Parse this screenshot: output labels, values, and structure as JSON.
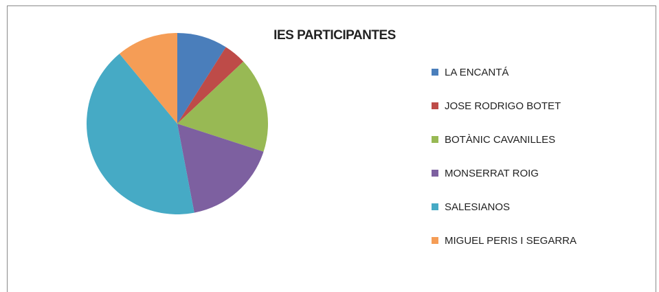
{
  "chart_data": {
    "type": "pie",
    "title": "IES PARTICIPANTES",
    "categories": [
      "LA ENCANTÁ",
      "JOSE RODRIGO BOTET",
      "BOTÀNIC CAVANILLES",
      "MONSERRAT ROIG",
      "SALESIANOS",
      "MIGUEL PERIS I SEGARRA"
    ],
    "values": [
      9,
      4,
      17,
      17,
      42,
      11
    ],
    "colors": [
      "#4a7ebb",
      "#be4b48",
      "#98b954",
      "#7d60a0",
      "#46aac5",
      "#f59d56"
    ],
    "legend": "right"
  }
}
